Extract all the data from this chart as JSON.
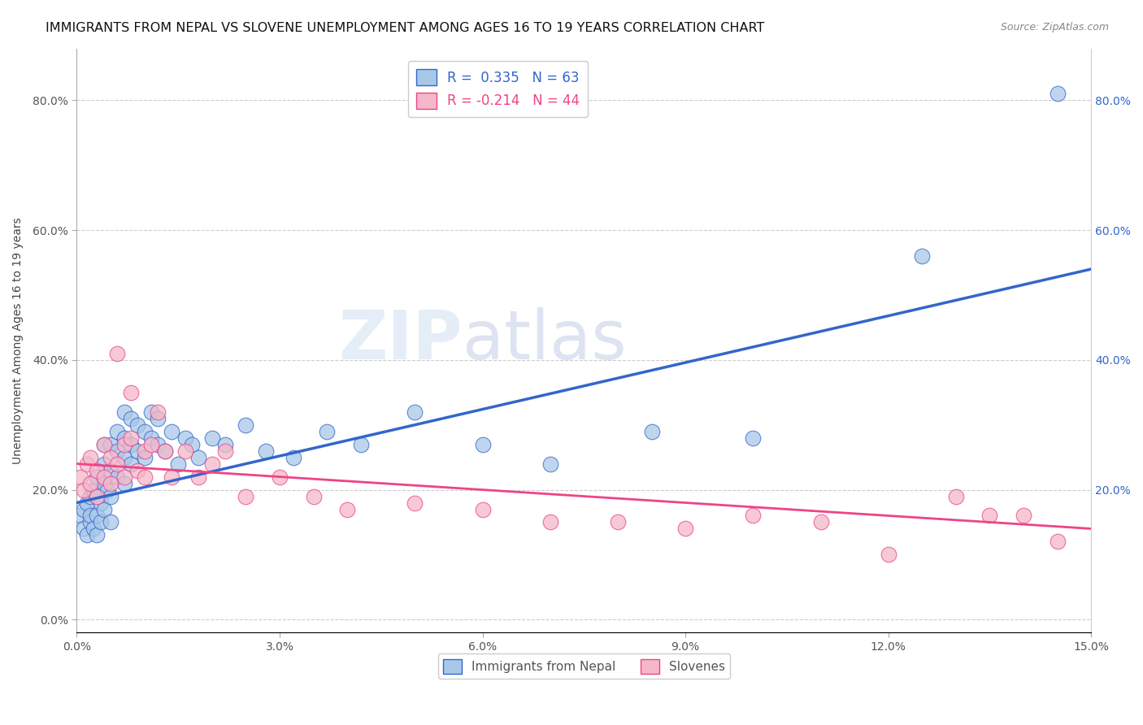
{
  "title": "IMMIGRANTS FROM NEPAL VS SLOVENE UNEMPLOYMENT AMONG AGES 16 TO 19 YEARS CORRELATION CHART",
  "source": "Source: ZipAtlas.com",
  "ylabel": "Unemployment Among Ages 16 to 19 years",
  "xlim": [
    0.0,
    0.15
  ],
  "ylim": [
    -0.02,
    0.88
  ],
  "xticks": [
    0.0,
    0.03,
    0.06,
    0.09,
    0.12,
    0.15
  ],
  "xtick_labels": [
    "0.0%",
    "3.0%",
    "6.0%",
    "9.0%",
    "12.0%",
    "15.0%"
  ],
  "yticks_left": [
    0.0,
    0.2,
    0.4,
    0.6,
    0.8
  ],
  "ytick_labels_left": [
    "0.0%",
    "20.0%",
    "40.0%",
    "60.0%",
    "80.0%"
  ],
  "yticks_right": [
    0.2,
    0.4,
    0.6,
    0.8
  ],
  "ytick_labels_right": [
    "20.0%",
    "40.0%",
    "60.0%",
    "80.0%"
  ],
  "blue_r": "0.335",
  "blue_n": "63",
  "pink_r": "-0.214",
  "pink_n": "44",
  "blue_color": "#a8c8e8",
  "pink_color": "#f4b8c8",
  "blue_line_color": "#3366cc",
  "pink_line_color": "#ee4488",
  "legend_label_blue": "Immigrants from Nepal",
  "legend_label_pink": "Slovenes",
  "watermark_zip": "ZIP",
  "watermark_atlas": "atlas",
  "blue_scatter_x": [
    0.0005,
    0.001,
    0.001,
    0.0015,
    0.0015,
    0.002,
    0.002,
    0.002,
    0.0025,
    0.0025,
    0.003,
    0.003,
    0.003,
    0.003,
    0.0035,
    0.0035,
    0.004,
    0.004,
    0.004,
    0.004,
    0.0045,
    0.005,
    0.005,
    0.005,
    0.005,
    0.006,
    0.006,
    0.006,
    0.007,
    0.007,
    0.007,
    0.007,
    0.008,
    0.008,
    0.008,
    0.009,
    0.009,
    0.01,
    0.01,
    0.011,
    0.011,
    0.012,
    0.012,
    0.013,
    0.014,
    0.015,
    0.016,
    0.017,
    0.018,
    0.02,
    0.022,
    0.025,
    0.028,
    0.032,
    0.037,
    0.042,
    0.05,
    0.06,
    0.07,
    0.085,
    0.1,
    0.125,
    0.145
  ],
  "blue_scatter_y": [
    0.16,
    0.14,
    0.17,
    0.13,
    0.18,
    0.15,
    0.19,
    0.16,
    0.14,
    0.2,
    0.13,
    0.16,
    0.19,
    0.22,
    0.15,
    0.18,
    0.17,
    0.21,
    0.24,
    0.27,
    0.2,
    0.15,
    0.19,
    0.23,
    0.27,
    0.22,
    0.26,
    0.29,
    0.21,
    0.25,
    0.28,
    0.32,
    0.24,
    0.27,
    0.31,
    0.26,
    0.3,
    0.25,
    0.29,
    0.28,
    0.32,
    0.27,
    0.31,
    0.26,
    0.29,
    0.24,
    0.28,
    0.27,
    0.25,
    0.28,
    0.27,
    0.3,
    0.26,
    0.25,
    0.29,
    0.27,
    0.32,
    0.27,
    0.24,
    0.29,
    0.28,
    0.56,
    0.81
  ],
  "pink_scatter_x": [
    0.0005,
    0.001,
    0.0015,
    0.002,
    0.002,
    0.003,
    0.003,
    0.004,
    0.004,
    0.005,
    0.005,
    0.006,
    0.006,
    0.007,
    0.007,
    0.008,
    0.008,
    0.009,
    0.01,
    0.01,
    0.011,
    0.012,
    0.013,
    0.014,
    0.016,
    0.018,
    0.02,
    0.022,
    0.025,
    0.03,
    0.035,
    0.04,
    0.05,
    0.06,
    0.07,
    0.08,
    0.09,
    0.1,
    0.11,
    0.12,
    0.13,
    0.135,
    0.14,
    0.145
  ],
  "pink_scatter_y": [
    0.22,
    0.2,
    0.24,
    0.21,
    0.25,
    0.23,
    0.19,
    0.22,
    0.27,
    0.21,
    0.25,
    0.41,
    0.24,
    0.27,
    0.22,
    0.35,
    0.28,
    0.23,
    0.26,
    0.22,
    0.27,
    0.32,
    0.26,
    0.22,
    0.26,
    0.22,
    0.24,
    0.26,
    0.19,
    0.22,
    0.19,
    0.17,
    0.18,
    0.17,
    0.15,
    0.15,
    0.14,
    0.16,
    0.15,
    0.1,
    0.19,
    0.16,
    0.16,
    0.12
  ],
  "blue_trendline_x0": 0.0,
  "blue_trendline_x1": 0.15,
  "blue_trendline_y0": 0.18,
  "blue_trendline_y1": 0.54,
  "pink_trendline_x0": 0.0,
  "pink_trendline_x1": 0.15,
  "pink_trendline_y0": 0.24,
  "pink_trendline_y1": 0.14,
  "title_fontsize": 11.5,
  "axis_label_fontsize": 10,
  "tick_fontsize": 10,
  "legend_fontsize": 12
}
